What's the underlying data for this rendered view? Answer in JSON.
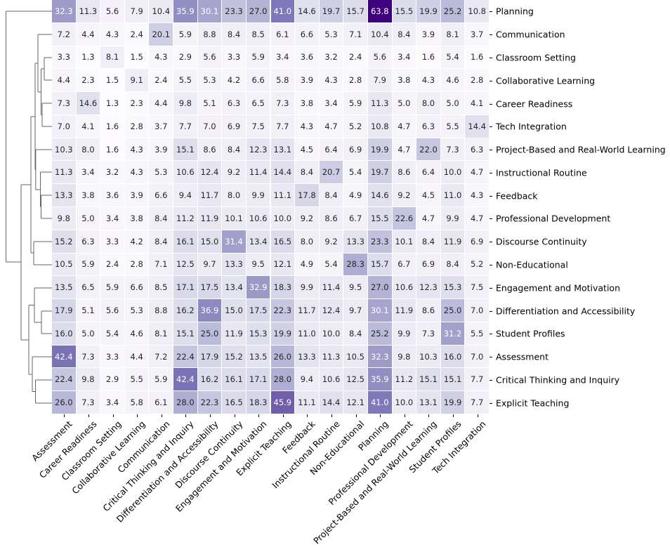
{
  "chart_data": {
    "type": "heatmap",
    "title": "",
    "xlabel": "",
    "ylabel": "",
    "colormap": "Purples",
    "color_range": [
      1.3,
      63.8
    ],
    "row_dendrogram": true,
    "columns": [
      "Assessment",
      "Career Readiness",
      "Classroom Setting",
      "Collaborative Learning",
      "Communication",
      "Critical Thinking and Inquiry",
      "Differentiation and Accessibility",
      "Discourse Continuity",
      "Engagement and Motivation",
      "Explicit Teaching",
      "Feedback",
      "Instructional Routine",
      "Non-Educational",
      "Planning",
      "Professional Development",
      "Project-Based and Real-World Learning",
      "Student Profiles",
      "Tech Integration"
    ],
    "rows": [
      {
        "label": "Planning",
        "values": [
          32.3,
          11.3,
          5.6,
          7.9,
          10.4,
          35.9,
          30.1,
          23.3,
          27.0,
          41.0,
          14.6,
          19.7,
          15.7,
          63.8,
          15.5,
          19.9,
          25.2,
          10.8
        ]
      },
      {
        "label": "Communication",
        "values": [
          7.2,
          4.4,
          4.3,
          2.4,
          20.1,
          5.9,
          8.8,
          8.4,
          8.5,
          6.1,
          6.6,
          5.3,
          7.1,
          10.4,
          8.4,
          3.9,
          8.1,
          3.7
        ]
      },
      {
        "label": "Classroom Setting",
        "values": [
          3.3,
          1.3,
          8.1,
          1.5,
          4.3,
          2.9,
          5.6,
          3.3,
          5.9,
          3.4,
          3.6,
          3.2,
          2.4,
          5.6,
          3.4,
          1.6,
          5.4,
          1.6
        ]
      },
      {
        "label": "Collaborative Learning",
        "values": [
          4.4,
          2.3,
          1.5,
          9.1,
          2.4,
          5.5,
          5.3,
          4.2,
          6.6,
          5.8,
          3.9,
          4.3,
          2.8,
          7.9,
          3.8,
          4.3,
          4.6,
          2.8
        ]
      },
      {
        "label": "Career Readiness",
        "values": [
          7.3,
          14.6,
          1.3,
          2.3,
          4.4,
          9.8,
          5.1,
          6.3,
          6.5,
          7.3,
          3.8,
          3.4,
          5.9,
          11.3,
          5.0,
          8.0,
          5.0,
          4.1
        ]
      },
      {
        "label": "Tech Integration",
        "values": [
          7.0,
          4.1,
          1.6,
          2.8,
          3.7,
          7.7,
          7.0,
          6.9,
          7.5,
          7.7,
          4.3,
          4.7,
          5.2,
          10.8,
          4.7,
          6.3,
          5.5,
          14.4
        ]
      },
      {
        "label": "Project-Based and Real-World Learning",
        "values": [
          10.3,
          8.0,
          1.6,
          4.3,
          3.9,
          15.1,
          8.6,
          8.4,
          12.3,
          13.1,
          4.5,
          6.4,
          6.9,
          19.9,
          4.7,
          22.0,
          7.3,
          6.3
        ]
      },
      {
        "label": "Instructional Routine",
        "values": [
          11.3,
          3.4,
          3.2,
          4.3,
          5.3,
          10.6,
          12.4,
          9.2,
          11.4,
          14.4,
          8.4,
          20.7,
          5.4,
          19.7,
          8.6,
          6.4,
          10.0,
          4.7
        ]
      },
      {
        "label": "Feedback",
        "values": [
          13.3,
          3.8,
          3.6,
          3.9,
          6.6,
          9.4,
          11.7,
          8.0,
          9.9,
          11.1,
          17.8,
          8.4,
          4.9,
          14.6,
          9.2,
          4.5,
          11.0,
          4.3
        ]
      },
      {
        "label": "Professional Development",
        "values": [
          9.8,
          5.0,
          3.4,
          3.8,
          8.4,
          11.2,
          11.9,
          10.1,
          10.6,
          10.0,
          9.2,
          8.6,
          6.7,
          15.5,
          22.6,
          4.7,
          9.9,
          4.7
        ]
      },
      {
        "label": "Discourse Continuity",
        "values": [
          15.2,
          6.3,
          3.3,
          4.2,
          8.4,
          16.1,
          15.0,
          31.4,
          13.4,
          16.5,
          8.0,
          9.2,
          13.3,
          23.3,
          10.1,
          8.4,
          11.9,
          6.9
        ]
      },
      {
        "label": "Non-Educational",
        "values": [
          10.5,
          5.9,
          2.4,
          2.8,
          7.1,
          12.5,
          9.7,
          13.3,
          9.5,
          12.1,
          4.9,
          5.4,
          28.3,
          15.7,
          6.7,
          6.9,
          8.4,
          5.2
        ]
      },
      {
        "label": "Engagement and Motivation",
        "values": [
          13.5,
          6.5,
          5.9,
          6.6,
          8.5,
          17.1,
          17.5,
          13.4,
          32.9,
          18.3,
          9.9,
          11.4,
          9.5,
          27.0,
          10.6,
          12.3,
          15.3,
          7.5
        ]
      },
      {
        "label": "Differentiation and Accessibility",
        "values": [
          17.9,
          5.1,
          5.6,
          5.3,
          8.8,
          16.2,
          36.9,
          15.0,
          17.5,
          22.3,
          11.7,
          12.4,
          9.7,
          30.1,
          11.9,
          8.6,
          25.0,
          7.0
        ]
      },
      {
        "label": "Student Profiles",
        "values": [
          16.0,
          5.0,
          5.4,
          4.6,
          8.1,
          15.1,
          25.0,
          11.9,
          15.3,
          19.9,
          11.0,
          10.0,
          8.4,
          25.2,
          9.9,
          7.3,
          31.2,
          5.5
        ]
      },
      {
        "label": "Assessment",
        "values": [
          42.4,
          7.3,
          3.3,
          4.4,
          7.2,
          22.4,
          17.9,
          15.2,
          13.5,
          26.0,
          13.3,
          11.3,
          10.5,
          32.3,
          9.8,
          10.3,
          16.0,
          7.0
        ]
      },
      {
        "label": "Critical Thinking and Inquiry",
        "values": [
          22.4,
          9.8,
          2.9,
          5.5,
          5.9,
          42.4,
          16.2,
          16.1,
          17.1,
          28.0,
          9.4,
          10.6,
          12.5,
          35.9,
          11.2,
          15.1,
          15.1,
          7.7
        ]
      },
      {
        "label": "Explicit Teaching",
        "values": [
          26.0,
          7.3,
          3.4,
          5.8,
          6.1,
          28.0,
          22.3,
          16.5,
          18.3,
          45.9,
          11.1,
          14.4,
          12.1,
          41.0,
          10.0,
          13.1,
          19.9,
          7.7
        ]
      }
    ]
  }
}
